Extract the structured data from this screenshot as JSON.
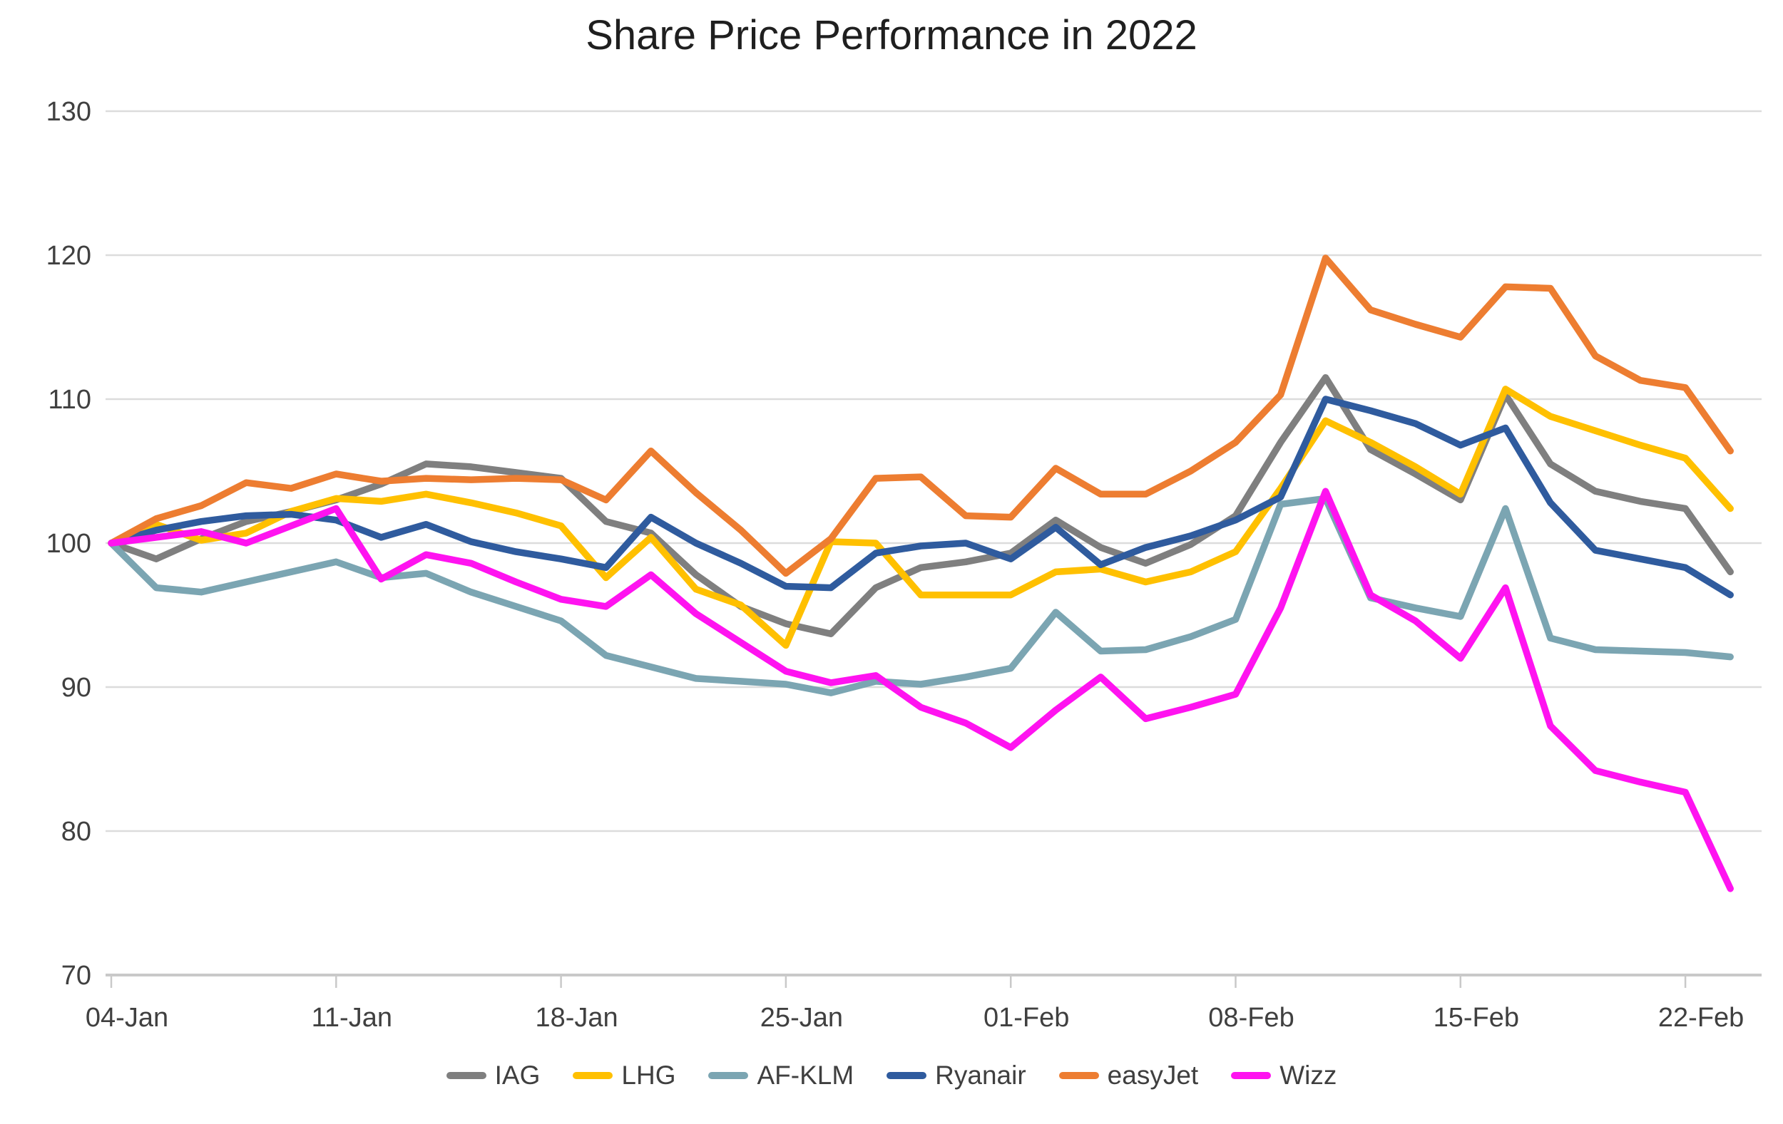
{
  "title": "Share Price Performance in 2022",
  "chart_data": {
    "type": "line",
    "title": "Share Price Performance in 2022",
    "x": [
      "04-Jan",
      "05-Jan",
      "06-Jan",
      "07-Jan",
      "10-Jan",
      "11-Jan",
      "12-Jan",
      "13-Jan",
      "14-Jan",
      "17-Jan",
      "18-Jan",
      "19-Jan",
      "20-Jan",
      "21-Jan",
      "24-Jan",
      "25-Jan",
      "26-Jan",
      "27-Jan",
      "28-Jan",
      "31-Jan",
      "01-Feb",
      "02-Feb",
      "03-Feb",
      "04-Feb",
      "07-Feb",
      "08-Feb",
      "09-Feb",
      "10-Feb",
      "11-Feb",
      "14-Feb",
      "15-Feb",
      "16-Feb",
      "17-Feb",
      "18-Feb",
      "21-Feb",
      "22-Feb",
      "23-Feb"
    ],
    "x_tick_labels": [
      "04-Jan",
      "11-Jan",
      "18-Jan",
      "25-Jan",
      "01-Feb",
      "08-Feb",
      "15-Feb",
      "22-Feb"
    ],
    "x_tick_indices": [
      0,
      5,
      10,
      15,
      20,
      25,
      30,
      35
    ],
    "ylim": [
      70,
      130
    ],
    "yticks": [
      70,
      80,
      90,
      100,
      110,
      120,
      130
    ],
    "grid": "horizontal",
    "legend_position": "bottom",
    "series": [
      {
        "name": "IAG",
        "color": "#7f7f7f",
        "values": [
          100,
          98.9,
          100.3,
          101.5,
          102.2,
          103.0,
          104.1,
          105.5,
          105.3,
          104.9,
          104.5,
          101.5,
          100.7,
          97.8,
          95.6,
          94.4,
          93.7,
          96.9,
          98.3,
          98.7,
          99.3,
          101.6,
          99.7,
          98.6,
          99.9,
          101.9,
          107.0,
          111.5,
          106.5,
          104.8,
          103.0,
          110.3,
          105.5,
          103.6,
          102.9,
          102.4,
          98.0
        ]
      },
      {
        "name": "LHG",
        "color": "#ffc000",
        "values": [
          100,
          101.3,
          100.2,
          100.7,
          102.2,
          103.1,
          102.9,
          103.4,
          102.8,
          102.1,
          101.2,
          97.6,
          100.4,
          96.8,
          95.7,
          92.9,
          100.1,
          100.0,
          96.4,
          96.4,
          96.4,
          98.0,
          98.2,
          97.3,
          98.0,
          99.4,
          103.8,
          108.5,
          107.0,
          105.3,
          103.4,
          110.7,
          108.8,
          107.8,
          106.8,
          105.9,
          102.4
        ]
      },
      {
        "name": "AF-KLM",
        "color": "#7ba5b2",
        "values": [
          100,
          96.9,
          96.6,
          97.3,
          98.0,
          98.7,
          97.6,
          97.9,
          96.6,
          95.6,
          94.6,
          92.2,
          91.4,
          90.6,
          90.4,
          90.2,
          89.6,
          90.4,
          90.2,
          90.7,
          91.3,
          95.2,
          92.5,
          92.6,
          93.5,
          94.7,
          102.7,
          103.1,
          96.2,
          95.5,
          94.9,
          102.4,
          93.4,
          92.6,
          92.5,
          92.4,
          92.1
        ]
      },
      {
        "name": "Ryanair",
        "color": "#2f5b9e",
        "values": [
          100,
          100.9,
          101.5,
          101.9,
          102.0,
          101.6,
          100.4,
          101.3,
          100.1,
          99.4,
          98.9,
          98.3,
          101.8,
          100.0,
          98.6,
          97.0,
          96.9,
          99.3,
          99.8,
          100.0,
          98.9,
          101.1,
          98.5,
          99.7,
          100.5,
          101.6,
          103.2,
          110.0,
          109.2,
          108.3,
          106.8,
          108.0,
          102.8,
          99.5,
          98.9,
          98.3,
          96.4
        ]
      },
      {
        "name": "easyJet",
        "color": "#ed7d31",
        "values": [
          100,
          101.7,
          102.6,
          104.2,
          103.8,
          104.8,
          104.3,
          104.5,
          104.4,
          104.5,
          104.4,
          103.0,
          106.4,
          103.5,
          100.9,
          97.9,
          100.3,
          104.5,
          104.6,
          101.9,
          101.8,
          105.2,
          103.4,
          103.4,
          105.0,
          107.0,
          110.3,
          119.8,
          116.2,
          115.2,
          114.3,
          117.8,
          117.7,
          113.0,
          111.3,
          110.8,
          106.4
        ]
      },
      {
        "name": "Wizz",
        "color": "#ff13f0",
        "values": [
          100,
          100.4,
          100.8,
          100.0,
          101.2,
          102.4,
          97.5,
          99.2,
          98.6,
          97.3,
          96.1,
          95.6,
          97.8,
          95.1,
          93.1,
          91.1,
          90.3,
          90.8,
          88.6,
          87.5,
          85.8,
          88.4,
          90.7,
          87.8,
          88.6,
          89.5,
          95.5,
          103.6,
          96.4,
          94.6,
          92.0,
          96.9,
          87.3,
          84.2,
          83.4,
          82.7,
          76.0
        ]
      }
    ],
    "axis_color": "#c9c9c9",
    "grid_color": "#dcdcdc",
    "tick_label_color": "#404040"
  }
}
